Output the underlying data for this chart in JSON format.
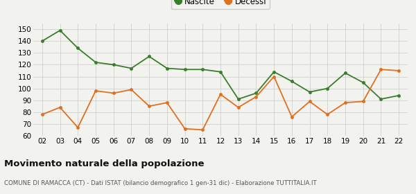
{
  "years": [
    "02",
    "03",
    "04",
    "05",
    "06",
    "07",
    "08",
    "09",
    "10",
    "11",
    "12",
    "13",
    "14",
    "15",
    "16",
    "17",
    "18",
    "19",
    "20",
    "21",
    "22"
  ],
  "nascite": [
    140,
    149,
    134,
    122,
    120,
    117,
    127,
    117,
    116,
    116,
    114,
    91,
    96,
    114,
    106,
    97,
    100,
    113,
    105,
    91,
    94
  ],
  "decessi": [
    78,
    84,
    67,
    98,
    96,
    99,
    85,
    88,
    66,
    65,
    95,
    84,
    93,
    110,
    76,
    89,
    78,
    88,
    89,
    116,
    115
  ],
  "nascite_color": "#3a7d2c",
  "decessi_color": "#e07020",
  "bg_color": "#f2f2ee",
  "grid_color": "#d0d0d0",
  "ylim": [
    60,
    155
  ],
  "yticks": [
    60,
    70,
    80,
    90,
    100,
    110,
    120,
    130,
    140,
    150
  ],
  "title": "Movimento naturale della popolazione",
  "subtitle": "COMUNE DI RAMACCA (CT) - Dati ISTAT (bilancio demografico 1 gen-31 dic) - Elaborazione TUTTITALIA.IT",
  "legend_nascite": "Nascite",
  "legend_decessi": "Decessi"
}
